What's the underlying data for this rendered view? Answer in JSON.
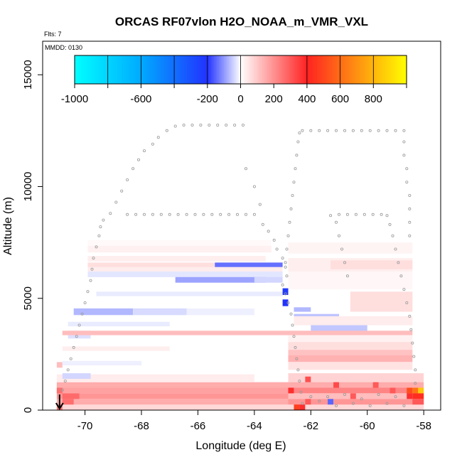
{
  "chart_data": {
    "type": "heatmap",
    "title": "ORCAS RF07vlon H2O_NOAA_m_VMR_VXL",
    "subtitle_flts": "Flts: 7",
    "subtitle_mmdd": "MMDD: 0130",
    "xlabel": "Longitude (deg E)",
    "ylabel": "Altitude (m)",
    "xlim": [
      -71.5,
      -57.4
    ],
    "ylim": [
      0,
      16500
    ],
    "x_ticks": [
      -70,
      -68,
      -66,
      -64,
      -62,
      -60,
      -58
    ],
    "x_tick_labels": [
      "-70",
      "-68",
      "-66",
      "-64",
      "-62",
      "-60",
      "-58"
    ],
    "y_ticks": [
      0,
      5000,
      10000,
      15000
    ],
    "y_tick_labels": [
      "0",
      "5000",
      "10000",
      "15000"
    ],
    "colorbar": {
      "range": [
        -1000,
        1000
      ],
      "tick_values": [
        -1000,
        -600,
        -200,
        0,
        200,
        400,
        600,
        800
      ],
      "tick_labels": [
        "-1000",
        "-600",
        "-200",
        "0",
        "200",
        "400",
        "600",
        "800"
      ],
      "divider_values": [
        -800,
        -600,
        -400,
        -200,
        0,
        400,
        600,
        800
      ],
      "stops": [
        {
          "v": -1000,
          "color": "#00ffff"
        },
        {
          "v": -600,
          "color": "#00aaff"
        },
        {
          "v": -200,
          "color": "#2233ff"
        },
        {
          "v": 0,
          "color": "#ffffff"
        },
        {
          "v": 400,
          "color": "#ff2222"
        },
        {
          "v": 1000,
          "color": "#ffff00"
        }
      ]
    },
    "cells": [
      {
        "x0": -71.0,
        "x1": -58.0,
        "y0": 0,
        "y1": 250,
        "v": 70
      },
      {
        "x0": -71.0,
        "x1": -62.8,
        "y0": 250,
        "y1": 500,
        "v": 150
      },
      {
        "x0": -71.0,
        "x1": -62.8,
        "y0": 500,
        "y1": 750,
        "v": 190
      },
      {
        "x0": -71.0,
        "x1": -62.8,
        "y0": 750,
        "y1": 1000,
        "v": 170
      },
      {
        "x0": -71.0,
        "x1": -62.8,
        "y0": 1000,
        "y1": 1250,
        "v": 150
      },
      {
        "x0": -71.0,
        "x1": -64.0,
        "y0": 1250,
        "y1": 1600,
        "v": 35
      },
      {
        "x0": -70.8,
        "x1": -69.8,
        "y0": 1400,
        "y1": 1650,
        "v": -40
      },
      {
        "x0": -71.0,
        "x1": -70.8,
        "y0": 1900,
        "y1": 2150,
        "v": 120
      },
      {
        "x0": -70.8,
        "x1": -68.0,
        "y0": 2000,
        "y1": 2200,
        "v": -15
      },
      {
        "x0": -70.8,
        "x1": -67.0,
        "y0": 2650,
        "y1": 2850,
        "v": 30
      },
      {
        "x0": -70.6,
        "x1": -69.8,
        "y0": 3200,
        "y1": 3550,
        "v": -30
      },
      {
        "x0": -70.6,
        "x1": -67.0,
        "y0": 3750,
        "y1": 3950,
        "v": -20
      },
      {
        "x0": -70.4,
        "x1": -68.3,
        "y0": 4250,
        "y1": 4550,
        "v": -70
      },
      {
        "x0": -68.3,
        "x1": -66.4,
        "y0": 4250,
        "y1": 4550,
        "v": -35
      },
      {
        "x0": -66.4,
        "x1": -64.0,
        "y0": 4250,
        "y1": 4550,
        "v": -15
      },
      {
        "x0": -69.9,
        "x1": -63.0,
        "y0": 5950,
        "y1": 6200,
        "v": -25
      },
      {
        "x0": -69.9,
        "x1": -63.0,
        "y0": 6200,
        "y1": 6400,
        "v": 35
      },
      {
        "x0": -69.6,
        "x1": -63.0,
        "y0": 5100,
        "y1": 5300,
        "v": -20
      },
      {
        "x0": -69.9,
        "x1": -63.0,
        "y0": 6400,
        "y1": 6600,
        "v": 60
      },
      {
        "x0": -65.4,
        "x1": -63.0,
        "y0": 6400,
        "y1": 6600,
        "v": -140
      },
      {
        "x0": -69.9,
        "x1": -63.6,
        "y0": 6650,
        "y1": 6900,
        "v": 30
      },
      {
        "x0": -69.9,
        "x1": -63.4,
        "y0": 7050,
        "y1": 7350,
        "v": 25
      },
      {
        "x0": -69.9,
        "x1": -63.4,
        "y0": 7350,
        "y1": 7600,
        "v": 10
      },
      {
        "x0": -66.8,
        "x1": -63.6,
        "y0": 5700,
        "y1": 5950,
        "v": -90
      },
      {
        "x0": -64.0,
        "x1": -63.0,
        "y0": 5700,
        "y1": 5950,
        "v": -40
      },
      {
        "x0": -63.0,
        "x1": -62.8,
        "y0": 5150,
        "y1": 5450,
        "v": -220
      },
      {
        "x0": -63.0,
        "x1": -62.8,
        "y0": 4650,
        "y1": 4950,
        "v": -200
      },
      {
        "x0": -62.8,
        "x1": -58.4,
        "y0": 6200,
        "y1": 6800,
        "v": 30
      },
      {
        "x0": -61.3,
        "x1": -58.4,
        "y0": 6300,
        "y1": 6700,
        "v": 60
      },
      {
        "x0": -62.8,
        "x1": -58.4,
        "y0": 7000,
        "y1": 7500,
        "v": 20
      },
      {
        "x0": -62.8,
        "x1": -58.4,
        "y0": 5400,
        "y1": 6200,
        "v": 15
      },
      {
        "x0": -60.6,
        "x1": -58.4,
        "y0": 4400,
        "y1": 5300,
        "v": 60
      },
      {
        "x0": -62.6,
        "x1": -62.0,
        "y0": 4400,
        "y1": 4600,
        "v": -70
      },
      {
        "x0": -62.6,
        "x1": -61.0,
        "y0": 4000,
        "y1": 4300,
        "v": -60
      },
      {
        "x0": -62.0,
        "x1": -60.0,
        "y0": 3500,
        "y1": 3800,
        "v": -55
      },
      {
        "x0": -62.6,
        "x1": -58.4,
        "y0": 3800,
        "y1": 4200,
        "v": 35
      },
      {
        "x0": -70.8,
        "x1": -58.4,
        "y0": 3350,
        "y1": 3550,
        "v": 120
      },
      {
        "x0": -62.8,
        "x1": -58.4,
        "y0": 3050,
        "y1": 3350,
        "v": 25
      },
      {
        "x0": -62.8,
        "x1": -58.4,
        "y0": 2700,
        "y1": 3050,
        "v": 60
      },
      {
        "x0": -62.8,
        "x1": -58.4,
        "y0": 2450,
        "y1": 2700,
        "v": 110
      },
      {
        "x0": -62.8,
        "x1": -58.4,
        "y0": 2150,
        "y1": 2450,
        "v": 140
      },
      {
        "x0": -62.8,
        "x1": -58.4,
        "y0": 1800,
        "y1": 2150,
        "v": 50
      },
      {
        "x0": -62.8,
        "x1": -58.0,
        "y0": 1250,
        "y1": 1650,
        "v": 80
      },
      {
        "x0": -62.8,
        "x1": -58.0,
        "y0": 1000,
        "y1": 1250,
        "v": 150
      },
      {
        "x0": -62.8,
        "x1": -58.0,
        "y0": 750,
        "y1": 1000,
        "v": 220
      },
      {
        "x0": -62.8,
        "x1": -58.0,
        "y0": 500,
        "y1": 750,
        "v": 120
      },
      {
        "x0": -62.8,
        "x1": -58.0,
        "y0": 250,
        "y1": 500,
        "v": 190
      },
      {
        "x0": -62.6,
        "x1": -62.4,
        "y0": 0,
        "y1": 250,
        "v": 480
      },
      {
        "x0": -62.4,
        "x1": -62.2,
        "y0": 0,
        "y1": 250,
        "v": 380
      },
      {
        "x0": -62.2,
        "x1": -62.0,
        "y0": 250,
        "y1": 500,
        "v": 300
      },
      {
        "x0": -61.4,
        "x1": -61.2,
        "y0": 250,
        "y1": 500,
        "v": -150
      },
      {
        "x0": -60.6,
        "x1": -60.4,
        "y0": 500,
        "y1": 750,
        "v": 300
      },
      {
        "x0": -59.2,
        "x1": -59.0,
        "y0": 750,
        "y1": 1000,
        "v": 300
      },
      {
        "x0": -58.6,
        "x1": -58.4,
        "y0": 500,
        "y1": 750,
        "v": 380
      },
      {
        "x0": -58.6,
        "x1": -58.4,
        "y0": 750,
        "y1": 1000,
        "v": 520
      },
      {
        "x0": -58.4,
        "x1": -58.2,
        "y0": 750,
        "y1": 1000,
        "v": 620
      },
      {
        "x0": -58.2,
        "x1": -58.0,
        "y0": 750,
        "y1": 1000,
        "v": 850
      },
      {
        "x0": -58.4,
        "x1": -58.0,
        "y0": 500,
        "y1": 750,
        "v": 430
      },
      {
        "x0": -58.4,
        "x1": -58.0,
        "y0": 250,
        "y1": 500,
        "v": 300
      },
      {
        "x0": -62.8,
        "x1": -62.6,
        "y0": 750,
        "y1": 1000,
        "v": 380
      },
      {
        "x0": -62.2,
        "x1": -62.0,
        "y0": 1250,
        "y1": 1500,
        "v": 320
      },
      {
        "x0": -61.2,
        "x1": -61.0,
        "y0": 1000,
        "y1": 1250,
        "v": 330
      },
      {
        "x0": -59.8,
        "x1": -59.6,
        "y0": 1000,
        "y1": 1250,
        "v": 300
      },
      {
        "x0": -71.0,
        "x1": -70.8,
        "y0": 0,
        "y1": 250,
        "v": 250
      },
      {
        "x0": -70.8,
        "x1": -70.4,
        "y0": 250,
        "y1": 500,
        "v": 260
      },
      {
        "x0": -71.0,
        "x1": -70.8,
        "y0": 750,
        "y1": 1000,
        "v": 260
      },
      {
        "x0": -70.8,
        "x1": -70.2,
        "y0": 500,
        "y1": 750,
        "v": 270
      }
    ],
    "flight_track": [
      [
        -70.8,
        900
      ],
      [
        -70.7,
        1300
      ],
      [
        -70.6,
        1800
      ],
      [
        -70.5,
        2300
      ],
      [
        -70.4,
        2800
      ],
      [
        -70.3,
        3300
      ],
      [
        -70.2,
        3800
      ],
      [
        -70.1,
        4300
      ],
      [
        -70.0,
        4800
      ],
      [
        -69.9,
        5300
      ],
      [
        -69.8,
        5800
      ],
      [
        -69.75,
        6300
      ],
      [
        -69.7,
        6800
      ],
      [
        -69.6,
        7300
      ],
      [
        -69.5,
        7800
      ],
      [
        -69.45,
        8200
      ],
      [
        -69.35,
        8500
      ],
      [
        -69.1,
        8800
      ],
      [
        -68.9,
        9300
      ],
      [
        -68.7,
        9800
      ],
      [
        -68.5,
        10300
      ],
      [
        -68.3,
        10800
      ],
      [
        -68.1,
        11200
      ],
      [
        -67.9,
        11600
      ],
      [
        -67.6,
        11900
      ],
      [
        -67.4,
        12200
      ],
      [
        -67.1,
        12500
      ],
      [
        -66.8,
        12700
      ],
      [
        -66.5,
        12750
      ],
      [
        -66.2,
        12750
      ],
      [
        -65.9,
        12750
      ],
      [
        -65.6,
        12750
      ],
      [
        -65.3,
        12750
      ],
      [
        -65.0,
        12750
      ],
      [
        -64.7,
        12750
      ],
      [
        -64.4,
        12750
      ],
      [
        -64.3,
        10800
      ],
      [
        -64.0,
        10000
      ],
      [
        -63.8,
        9200
      ],
      [
        -63.7,
        8300
      ],
      [
        -63.5,
        8000
      ],
      [
        -63.3,
        7600
      ],
      [
        -63.2,
        7200
      ],
      [
        -63.0,
        6800
      ],
      [
        -62.9,
        6400
      ],
      [
        -62.85,
        6000
      ],
      [
        -68.5,
        8750
      ],
      [
        -68.2,
        8750
      ],
      [
        -67.9,
        8750
      ],
      [
        -67.6,
        8750
      ],
      [
        -67.3,
        8750
      ],
      [
        -67.0,
        8750
      ],
      [
        -66.7,
        8750
      ],
      [
        -66.4,
        8750
      ],
      [
        -66.1,
        8750
      ],
      [
        -65.8,
        8750
      ],
      [
        -65.5,
        8750
      ],
      [
        -65.2,
        8750
      ],
      [
        -64.9,
        8750
      ],
      [
        -64.6,
        8750
      ],
      [
        -64.3,
        8750
      ],
      [
        -64.0,
        8750
      ],
      [
        -63.0,
        5600
      ],
      [
        -62.9,
        5200
      ],
      [
        -62.8,
        4800
      ],
      [
        -62.7,
        4300
      ],
      [
        -62.65,
        3800
      ],
      [
        -62.6,
        3300
      ],
      [
        -62.55,
        2800
      ],
      [
        -62.5,
        2300
      ],
      [
        -62.45,
        1800
      ],
      [
        -62.4,
        1300
      ],
      [
        -62.35,
        800
      ],
      [
        -62.3,
        300
      ],
      [
        -62.9,
        6600
      ],
      [
        -62.85,
        7200
      ],
      [
        -62.8,
        7800
      ],
      [
        -62.75,
        8400
      ],
      [
        -62.7,
        9000
      ],
      [
        -62.65,
        9600
      ],
      [
        -62.6,
        10200
      ],
      [
        -62.55,
        10800
      ],
      [
        -62.5,
        11400
      ],
      [
        -62.45,
        12000
      ],
      [
        -62.4,
        12400
      ],
      [
        -62.3,
        12500
      ],
      [
        -62.0,
        12500
      ],
      [
        -61.7,
        12500
      ],
      [
        -61.4,
        12500
      ],
      [
        -61.1,
        12500
      ],
      [
        -60.8,
        12500
      ],
      [
        -60.5,
        12500
      ],
      [
        -60.2,
        12500
      ],
      [
        -59.9,
        12500
      ],
      [
        -59.6,
        12500
      ],
      [
        -59.3,
        12500
      ],
      [
        -59.0,
        12500
      ],
      [
        -58.7,
        12500
      ],
      [
        -58.7,
        12000
      ],
      [
        -58.7,
        11400
      ],
      [
        -58.6,
        10800
      ],
      [
        -58.6,
        10200
      ],
      [
        -58.5,
        9600
      ],
      [
        -58.5,
        9000
      ],
      [
        -58.5,
        8400
      ],
      [
        -58.5,
        7800
      ],
      [
        -60.7,
        6000
      ],
      [
        -60.8,
        6600
      ],
      [
        -60.9,
        7200
      ],
      [
        -61.0,
        7800
      ],
      [
        -61.1,
        8400
      ],
      [
        -61.3,
        8700
      ],
      [
        -61.0,
        8750
      ],
      [
        -60.7,
        8750
      ],
      [
        -60.4,
        8750
      ],
      [
        -60.1,
        8750
      ],
      [
        -59.8,
        8750
      ],
      [
        -59.5,
        8750
      ],
      [
        -59.3,
        8700
      ],
      [
        -59.2,
        8300
      ],
      [
        -59.1,
        7800
      ],
      [
        -59.0,
        7200
      ],
      [
        -58.9,
        6600
      ],
      [
        -58.8,
        6000
      ],
      [
        -58.7,
        5400
      ],
      [
        -58.6,
        4800
      ],
      [
        -58.5,
        4200
      ],
      [
        -58.45,
        3600
      ],
      [
        -58.4,
        3000
      ],
      [
        -58.35,
        2400
      ],
      [
        -58.3,
        1800
      ],
      [
        -58.3,
        1200
      ],
      [
        -62.0,
        600
      ],
      [
        -61.7,
        400
      ],
      [
        -61.4,
        600
      ],
      [
        -61.1,
        200
      ],
      [
        -60.8,
        700
      ],
      [
        -60.5,
        300
      ],
      [
        -60.2,
        500
      ],
      [
        -59.9,
        200
      ],
      [
        -59.6,
        700
      ],
      [
        -59.3,
        300
      ],
      [
        -59.0,
        600
      ],
      [
        -58.7,
        200
      ]
    ],
    "start_marker": {
      "x": -70.9,
      "y": 0,
      "label": "start-arrow"
    }
  },
  "colors": {
    "axis": "#000000",
    "track": "#9a9a9a",
    "background": "#ffffff"
  }
}
